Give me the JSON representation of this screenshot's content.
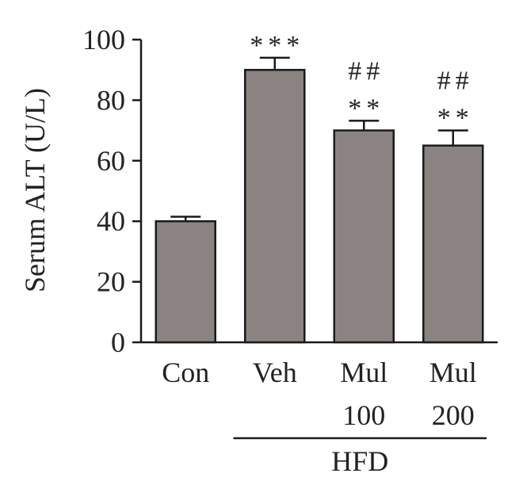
{
  "chart_data": {
    "type": "bar",
    "title": "",
    "ylabel": "Serum ALT (U/L)",
    "xlabel": "",
    "ylim": [
      0,
      100
    ],
    "yticks": [
      "0",
      "20",
      "40",
      "60",
      "80",
      "100"
    ],
    "categories": [
      "Con",
      "Veh",
      "Mul 100",
      "Mul 200"
    ],
    "category_lines": [
      [
        "Con"
      ],
      [
        "Veh"
      ],
      [
        "Mul",
        "100"
      ],
      [
        "Mul",
        "200"
      ]
    ],
    "values": [
      40,
      90,
      70,
      65
    ],
    "errors": [
      1.5,
      4,
      3.2,
      5
    ],
    "significance": [
      {
        "stars": "",
        "hashes": ""
      },
      {
        "stars": "***",
        "hashes": ""
      },
      {
        "stars": "**",
        "hashes": "##"
      },
      {
        "stars": "**",
        "hashes": "##"
      }
    ],
    "group_label": "HFD",
    "group_categories": [
      "Veh",
      "Mul 100",
      "Mul 200"
    ],
    "colors": {
      "bar": "#8b8381",
      "bar_edge": "#1a1a1a",
      "axis": "#1a1a1a"
    }
  }
}
